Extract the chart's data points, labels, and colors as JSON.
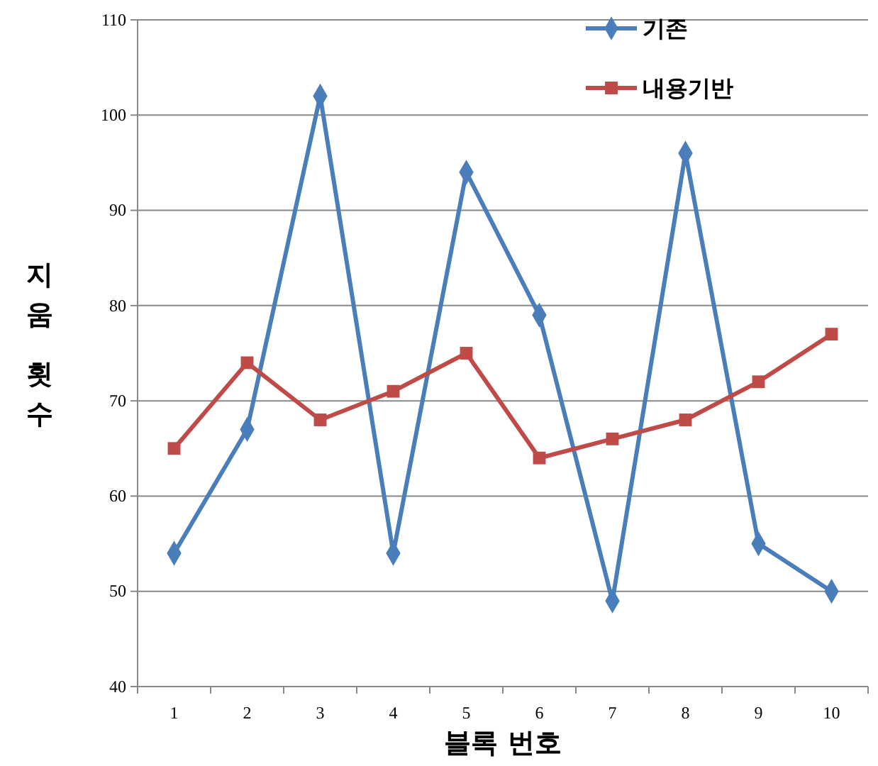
{
  "chart_data": {
    "type": "line",
    "xlabel": "블록 번호",
    "ylabel": "지움 횟수",
    "categories": [
      "1",
      "2",
      "3",
      "4",
      "5",
      "6",
      "7",
      "8",
      "9",
      "10"
    ],
    "series": [
      {
        "name": "기존",
        "color": "#4a7ebb",
        "marker": "diamond",
        "values": [
          54,
          67,
          102,
          54,
          94,
          79,
          49,
          96,
          55,
          50
        ]
      },
      {
        "name": "내용기반",
        "color": "#be4b48",
        "marker": "square",
        "values": [
          65,
          74,
          68,
          71,
          75,
          64,
          66,
          68,
          72,
          77
        ]
      }
    ],
    "ylim": [
      40,
      110
    ],
    "yticks": [
      40,
      50,
      60,
      70,
      80,
      90,
      100,
      110
    ],
    "grid": "y",
    "legend": "top right"
  }
}
